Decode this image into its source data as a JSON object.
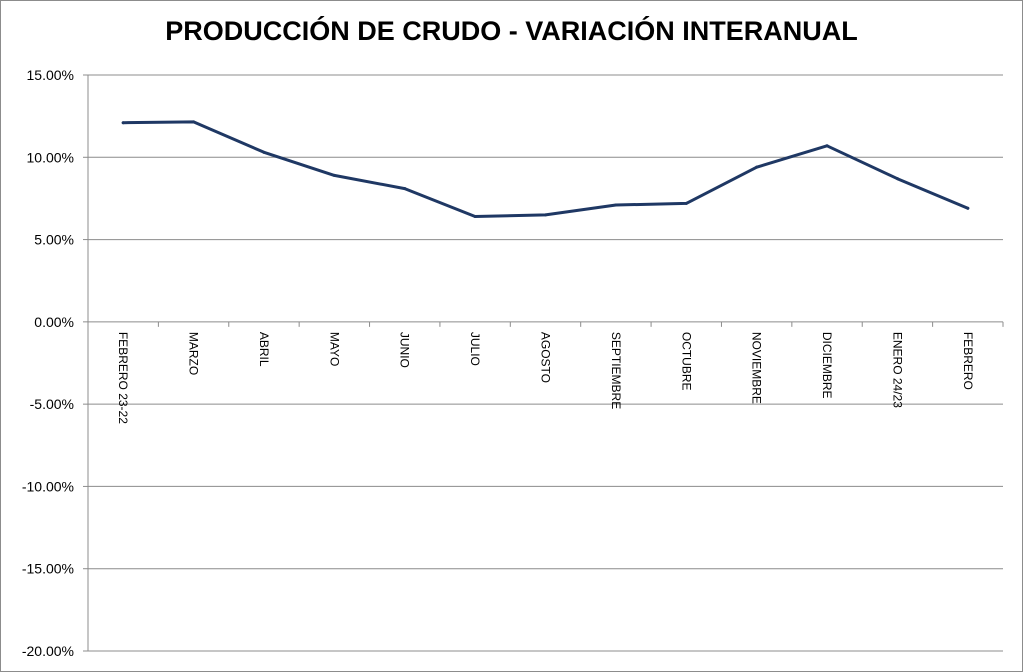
{
  "chart_data": {
    "type": "line",
    "title": "PRODUCCIÓN DE CRUDO - VARIACIÓN INTERANUAL",
    "xlabel": "",
    "ylabel": "",
    "categories": [
      "FEBRERO 23-22",
      "MARZO",
      "ABRIL",
      "MAYO",
      "JUNIO",
      "JULIO",
      "AGOSTO",
      "SEPTIEMBRE",
      "OCTUBRE",
      "NOVIEMBRE",
      "DICIEMBRE",
      "ENERO 24/23",
      "FEBRERO"
    ],
    "series": [
      {
        "values": [
          12.1,
          12.15,
          10.3,
          8.9,
          8.1,
          6.4,
          6.5,
          7.1,
          7.2,
          9.4,
          10.7,
          8.7,
          6.9
        ]
      }
    ],
    "ylim": [
      -20,
      15
    ],
    "yticks": [
      15,
      10,
      5,
      0,
      -5,
      -10,
      -15,
      -20
    ],
    "ytick_labels": [
      "15.00%",
      "10.00%",
      "5.00%",
      "0.00%",
      "-5.00%",
      "-10.00%",
      "-15.00%",
      "-20.00%"
    ],
    "grid": true,
    "legend": "none",
    "line_color": "#1f3864"
  }
}
